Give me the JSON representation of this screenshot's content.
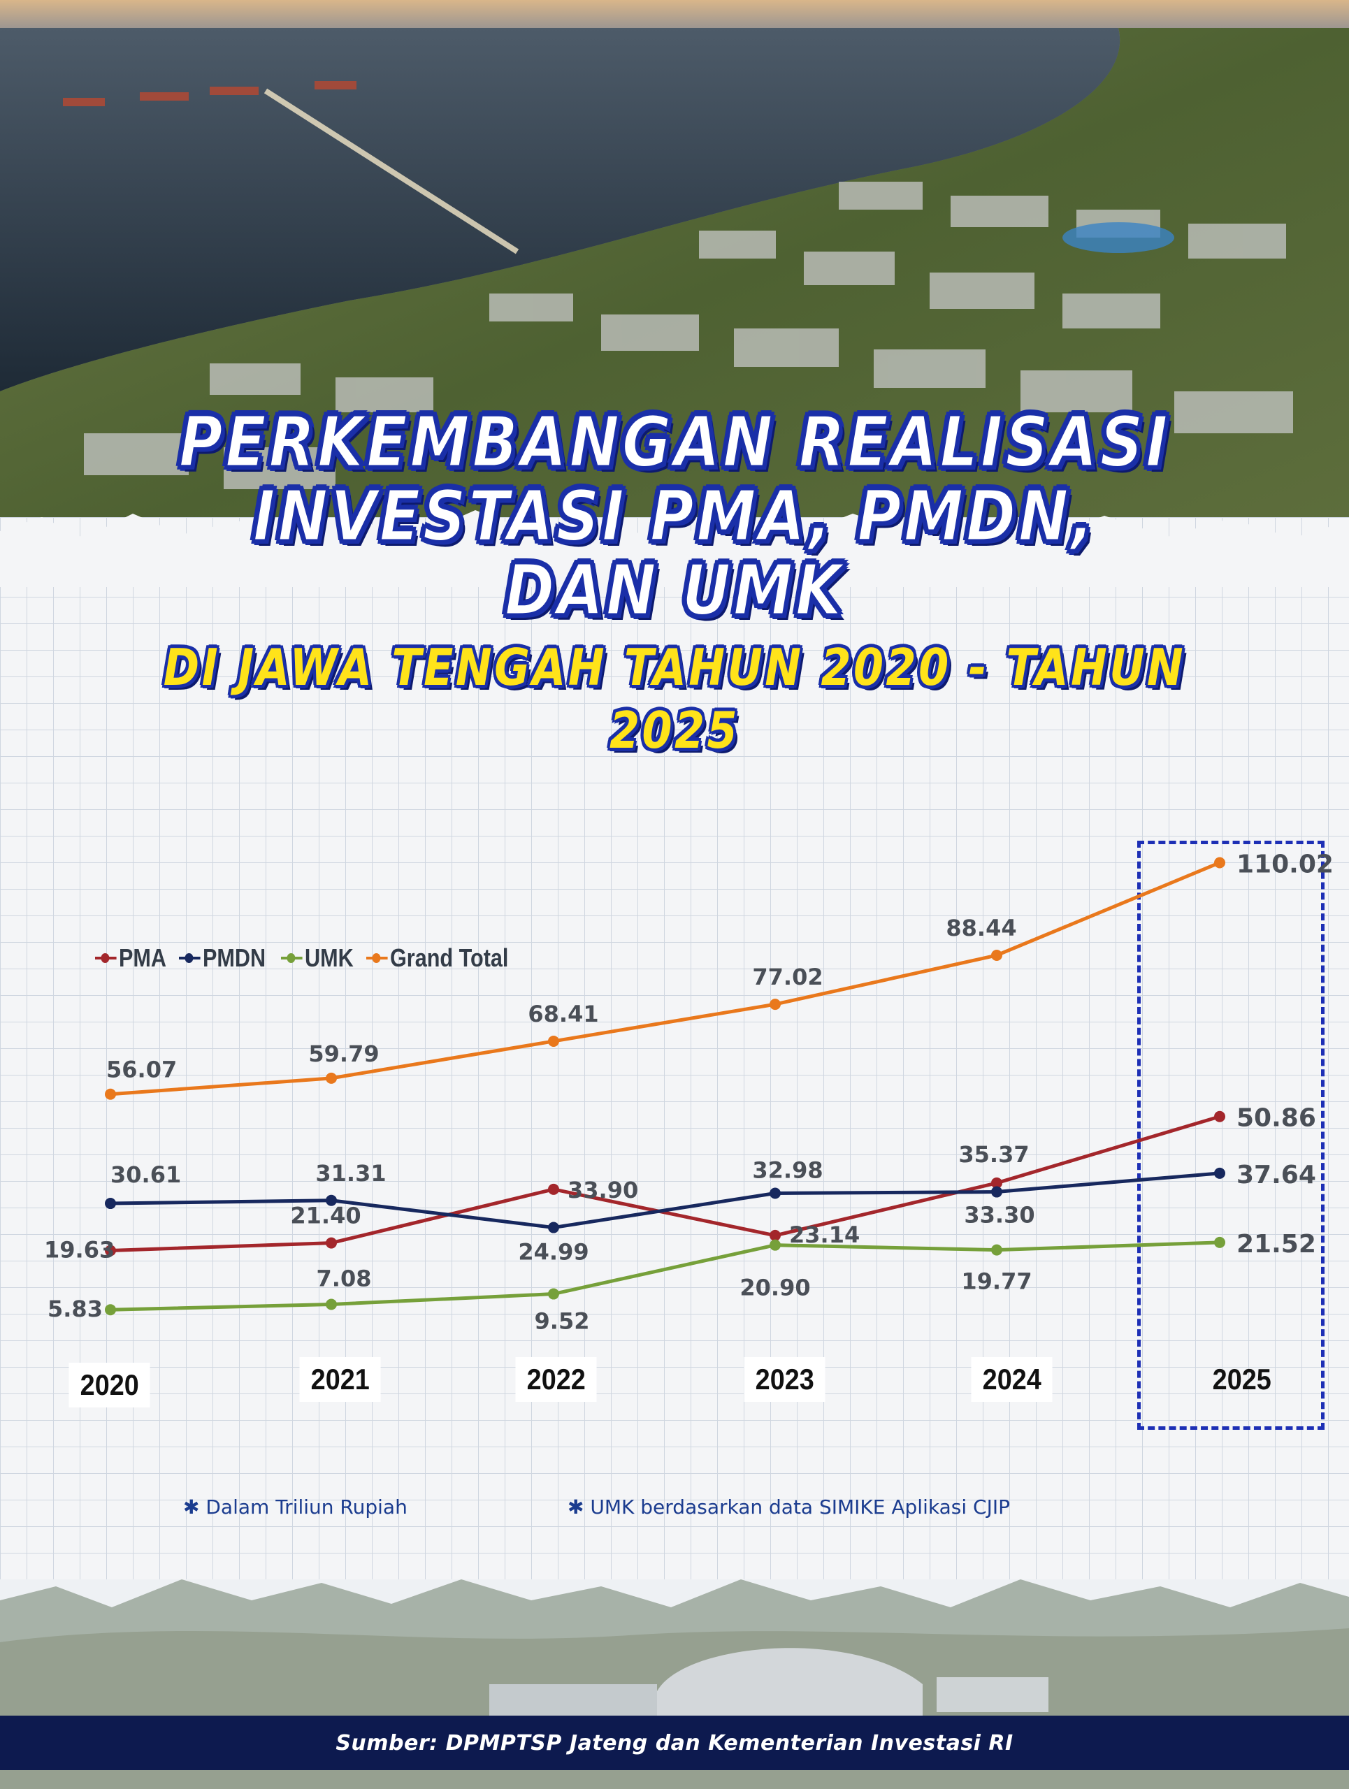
{
  "header": {
    "title_lines": [
      "PERKEMBANGAN REALISASI",
      "INVESTASI PMA, PMDN,",
      "DAN UMK"
    ],
    "subtitle": "DI JAWA TENGAH TAHUN 2020 - TAHUN 2025"
  },
  "chart_data": {
    "type": "line",
    "title": "PERKEMBANGAN REALISASI INVESTASI PMA, PMDN, DAN UMK DI JAWA TENGAH TAHUN 2020 - TAHUN 2025",
    "categories": [
      "2020",
      "2021",
      "2022",
      "2023",
      "2024",
      "2025"
    ],
    "series": [
      {
        "name": "PMA",
        "color": "#a3262b",
        "values": [
          19.63,
          21.4,
          33.9,
          23.14,
          35.37,
          50.86
        ]
      },
      {
        "name": "PMDN",
        "color": "#17285e",
        "values": [
          30.61,
          31.31,
          24.99,
          32.98,
          33.3,
          37.64
        ]
      },
      {
        "name": "UMK",
        "color": "#76a03a",
        "values": [
          5.83,
          7.08,
          9.52,
          20.9,
          19.77,
          21.52
        ]
      },
      {
        "name": "Grand Total",
        "color": "#e9781c",
        "values": [
          56.07,
          59.79,
          68.41,
          77.02,
          88.44,
          110.02
        ]
      }
    ],
    "value_labels": {
      "PMA": [
        "19.63",
        "21.40",
        "33.90",
        "23.14",
        "35.37",
        "50.86"
      ],
      "PMDN": [
        "30.61",
        "31.31",
        "24.99",
        "32.98",
        "33.30",
        "37.64"
      ],
      "UMK": [
        "5.83",
        "7.08",
        "9.52",
        "20.90",
        "19.77",
        "21.52"
      ],
      "Grand Total": [
        "56.07",
        "59.79",
        "68.41",
        "77.02",
        "88.44",
        "110.02"
      ]
    },
    "legend_position": "top-left",
    "highlighted_category": "2025",
    "ylim": [
      0,
      120
    ],
    "grid": false
  },
  "notes": {
    "left": "✱  Dalam Triliun Rupiah",
    "right": "✱  UMK berdasarkan data SIMIKE Aplikasi CJIP"
  },
  "footer": {
    "source": "Sumber: DPMPTSP Jateng dan Kementerian Investasi RI"
  },
  "colors": {
    "title_stroke": "#1a2fa8",
    "subtitle_fill": "#ffe31a",
    "footer_bar": "#0d1a4f",
    "note_text": "#1b3c8f"
  }
}
